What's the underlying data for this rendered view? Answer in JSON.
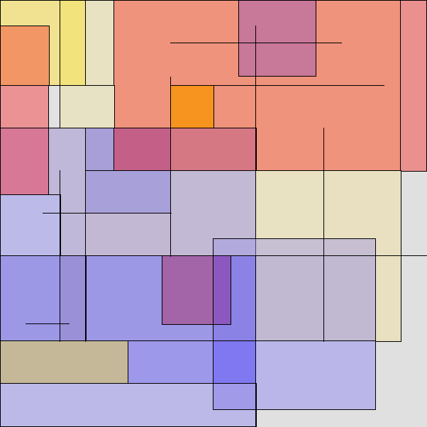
{
  "palette": {
    "salmon": "#f0927a",
    "pink": "#e89090",
    "yellow": "#f1e27f",
    "cream": "#e8e0c0",
    "lavender": "#bcb9e8",
    "grey-lilac": "#c0b8d0",
    "periwinkle": "#9d98e4",
    "mauve": "#c57898",
    "magenta": "#c46088",
    "orange": "#f49a30",
    "tan": "#c4b898",
    "blue": "#8078f0",
    "purple": "#9060a8"
  }
}
